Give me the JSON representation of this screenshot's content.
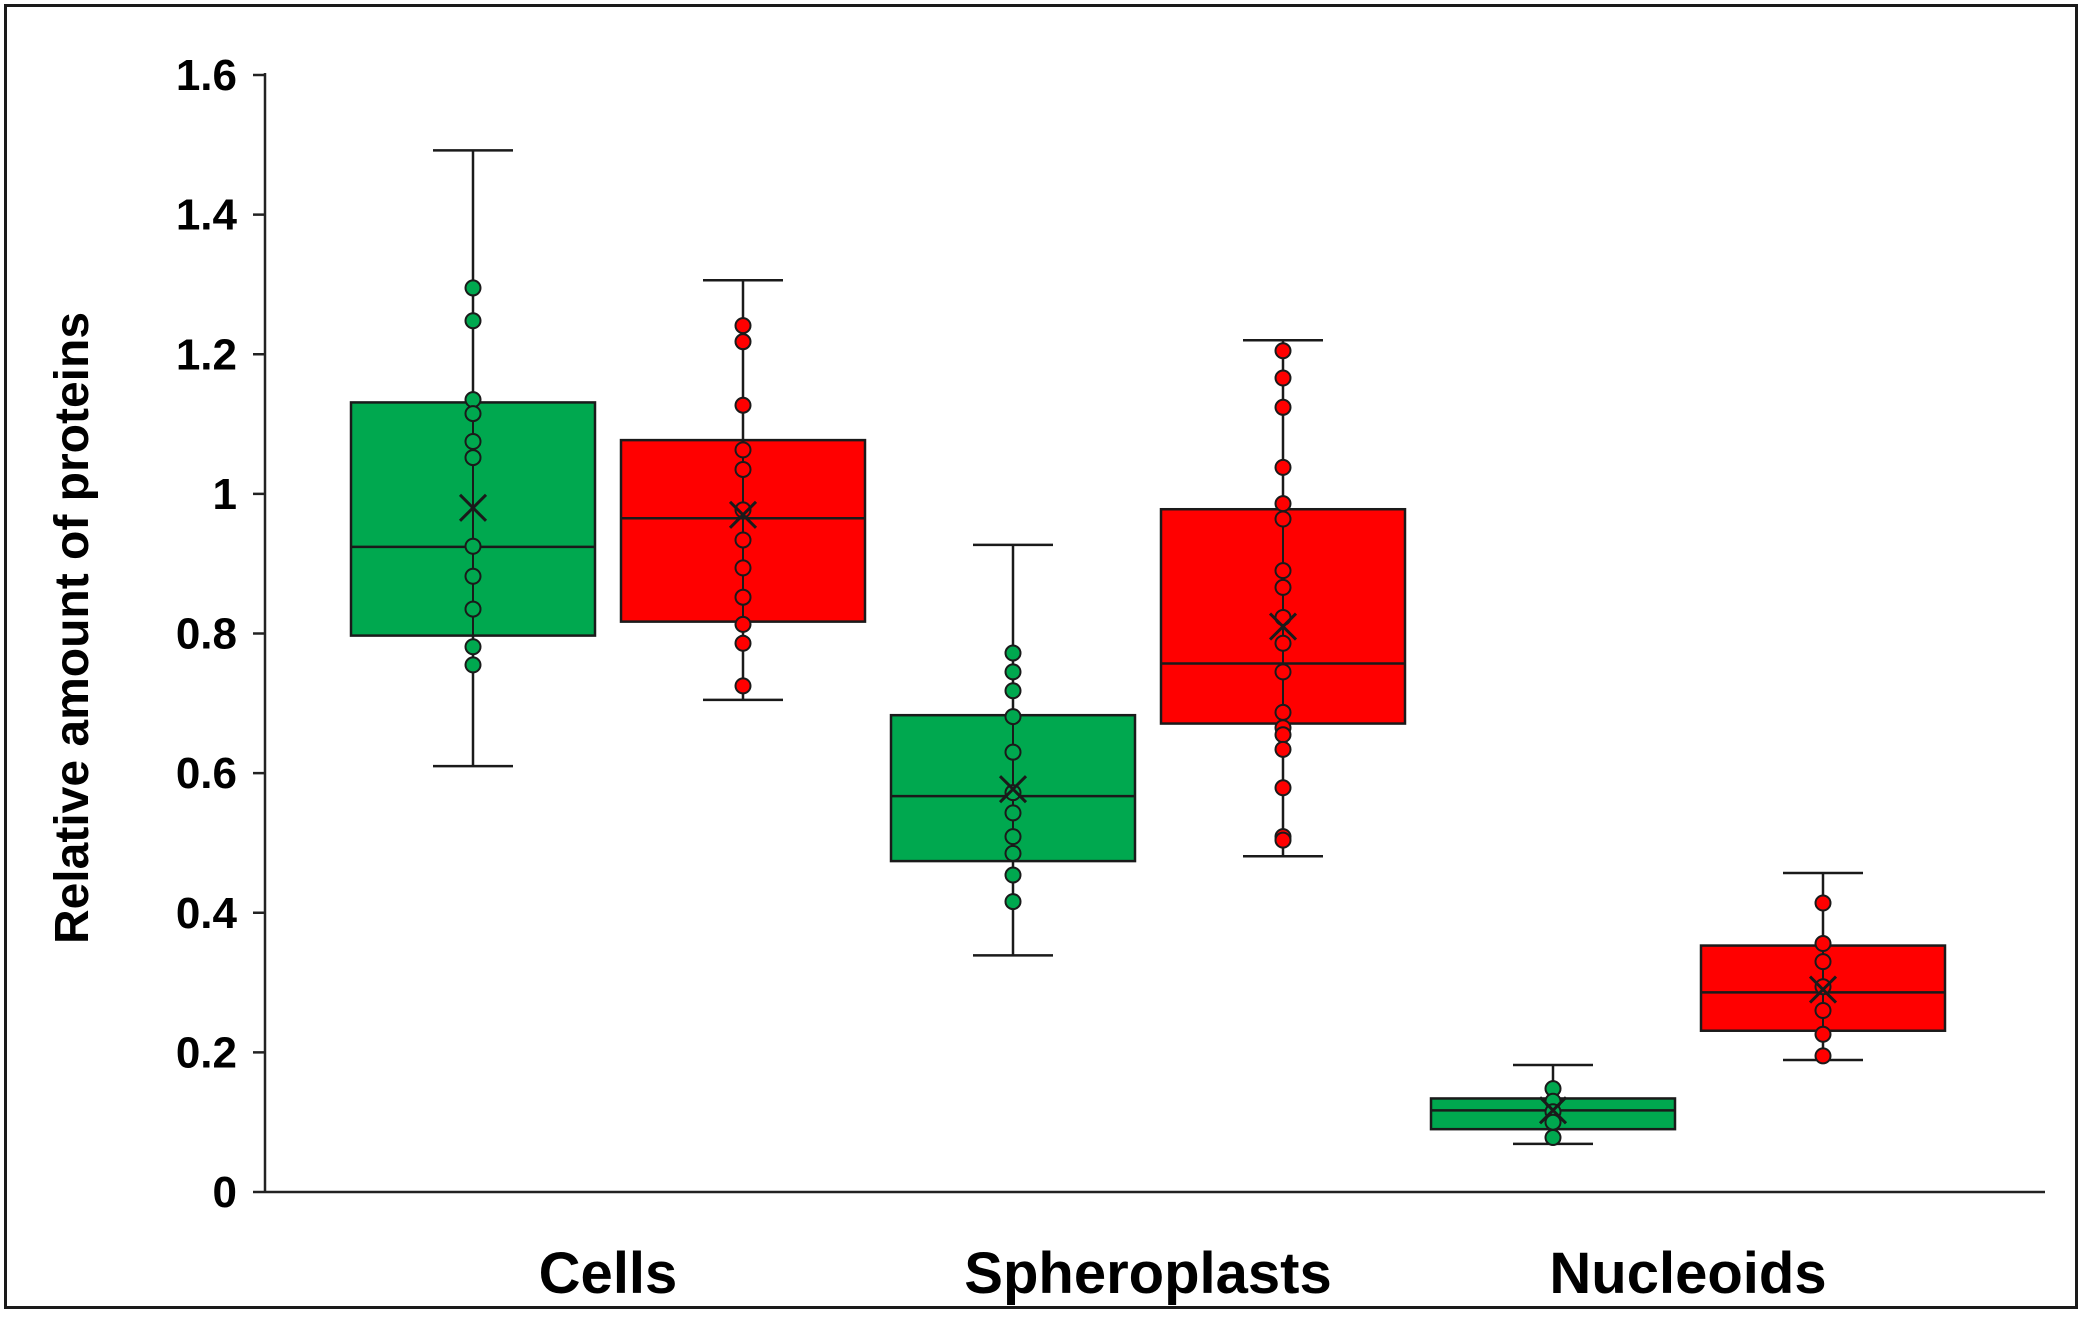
{
  "chart_data": {
    "type": "box",
    "title": "",
    "xlabel": "",
    "ylabel": "Relative amount of proteins",
    "ylim": [
      0,
      1.6
    ],
    "yticks": [
      0,
      0.2,
      0.4,
      0.6,
      0.8,
      1,
      1.2,
      1.4,
      1.6
    ],
    "ytick_labels": [
      "0",
      "0.2",
      "0.4",
      "0.6",
      "0.8",
      "1",
      "1.2",
      "1.4",
      "1.6"
    ],
    "categories": [
      "Cells",
      "Spheroplasts",
      "Nucleoids"
    ],
    "colors": {
      "green": "#00a84f",
      "red": "#ff0000",
      "outline": "#1a1a1a"
    },
    "series": [
      {
        "name": "green",
        "color": "#00a84f",
        "boxes": [
          {
            "category": "Cells",
            "min": 0.61,
            "q1": 0.797,
            "median": 0.924,
            "q3": 1.131,
            "max": 1.492,
            "mean": 0.98,
            "points": [
              1.295,
              1.248,
              1.135,
              1.115,
              1.075,
              1.052,
              0.925,
              0.882,
              0.835,
              0.781,
              0.755
            ]
          },
          {
            "category": "Spheroplasts",
            "min": 0.339,
            "q1": 0.474,
            "median": 0.567,
            "q3": 0.683,
            "max": 0.927,
            "mean": 0.577,
            "points": [
              0.772,
              0.745,
              0.718,
              0.681,
              0.63,
              0.572,
              0.543,
              0.509,
              0.485,
              0.454,
              0.416
            ]
          },
          {
            "category": "Nucleoids",
            "min": 0.069,
            "q1": 0.09,
            "median": 0.117,
            "q3": 0.134,
            "max": 0.182,
            "mean": 0.117,
            "points": [
              0.148,
              0.13,
              0.115,
              0.1,
              0.078
            ]
          }
        ]
      },
      {
        "name": "red",
        "color": "#ff0000",
        "boxes": [
          {
            "category": "Cells",
            "min": 0.705,
            "q1": 0.817,
            "median": 0.965,
            "q3": 1.077,
            "max": 1.306,
            "mean": 0.97,
            "points": [
              1.241,
              1.218,
              1.127,
              1.063,
              1.035,
              0.977,
              0.934,
              0.894,
              0.852,
              0.813,
              0.786,
              0.725
            ]
          },
          {
            "category": "Spheroplasts",
            "min": 0.481,
            "q1": 0.671,
            "median": 0.757,
            "q3": 0.978,
            "max": 1.22,
            "mean": 0.81,
            "points": [
              1.205,
              1.166,
              1.124,
              1.038,
              0.986,
              0.964,
              0.89,
              0.866,
              0.823,
              0.786,
              0.745,
              0.687,
              0.665,
              0.655,
              0.634,
              0.579,
              0.509,
              0.504
            ]
          },
          {
            "category": "Nucleoids",
            "min": 0.189,
            "q1": 0.231,
            "median": 0.286,
            "q3": 0.353,
            "max": 0.457,
            "mean": 0.29,
            "points": [
              0.414,
              0.356,
              0.33,
              0.294,
              0.26,
              0.226,
              0.195
            ]
          }
        ]
      }
    ]
  }
}
